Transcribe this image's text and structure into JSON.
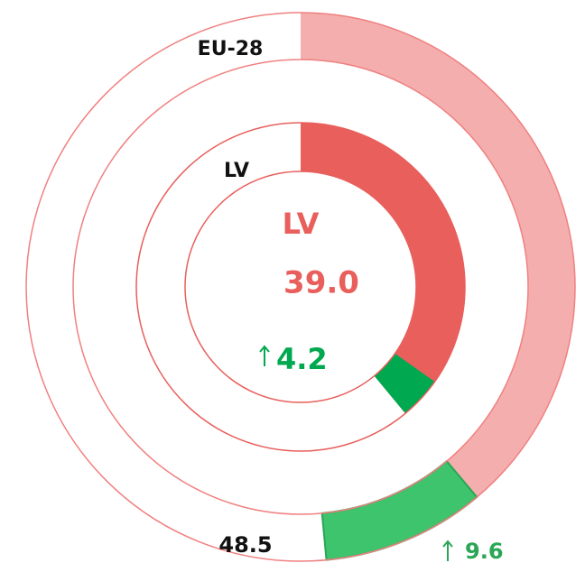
{
  "chart_data": {
    "type": "ring",
    "ylim": [
      0,
      100
    ],
    "center_label": "LV",
    "rings": [
      {
        "label": "EU-28",
        "value": 48.5,
        "change": 9.6,
        "color": "#f4aeae",
        "change_color": "#3ec46d"
      },
      {
        "label": "LV",
        "value": 39.0,
        "value_label": "39.0",
        "change": 4.2,
        "color": "#e85f5c",
        "change_color": "#00a84f"
      }
    ]
  }
}
